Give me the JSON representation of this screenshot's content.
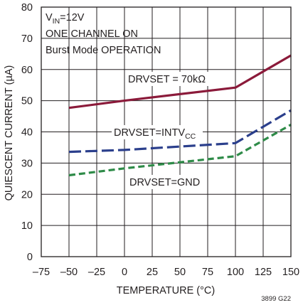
{
  "chart_data": {
    "type": "line",
    "xlabel": "TEMPERATURE (°C)",
    "ylabel": "QUIESCENT CURRENT (µA)",
    "xlim": [
      -75,
      150
    ],
    "ylim": [
      0,
      80
    ],
    "x_ticks": [
      "–75",
      "–50",
      "–25",
      "0",
      "25",
      "50",
      "75",
      "100",
      "125",
      "150"
    ],
    "y_ticks": [
      "0",
      "10",
      "20",
      "30",
      "40",
      "50",
      "60",
      "70",
      "80"
    ],
    "grid": true,
    "conditions": {
      "vin_main": "V",
      "vin_sub": "IN",
      "vin_rest": "=12V",
      "line2": "ONE CHANNEL ON",
      "line3": "Burst Mode OPERATION"
    },
    "series": [
      {
        "name": "DRVSET = 70kΩ",
        "label_main": "DRVSET = 70kΩ",
        "label_sub": "",
        "color": "#8b1a3a",
        "style": "solid",
        "x": [
          -50,
          0,
          100,
          150
        ],
        "y": [
          47.7,
          50.0,
          54.2,
          64.5
        ]
      },
      {
        "name": "DRVSET=INTVCC",
        "label_main": "DRVSET=INTV",
        "label_sub": "CC",
        "color": "#2b3f8c",
        "style": "dashed",
        "x": [
          -50,
          0,
          100,
          150
        ],
        "y": [
          33.6,
          34.2,
          36.4,
          46.9
        ]
      },
      {
        "name": "DRVSET=GND",
        "label_main": "DRVSET=GND",
        "label_sub": "",
        "color": "#2e8b48",
        "style": "dashed",
        "x": [
          -50,
          0,
          100,
          150
        ],
        "y": [
          26.1,
          28.3,
          32.2,
          42.3
        ]
      }
    ],
    "figure_id": "3899 G22"
  }
}
